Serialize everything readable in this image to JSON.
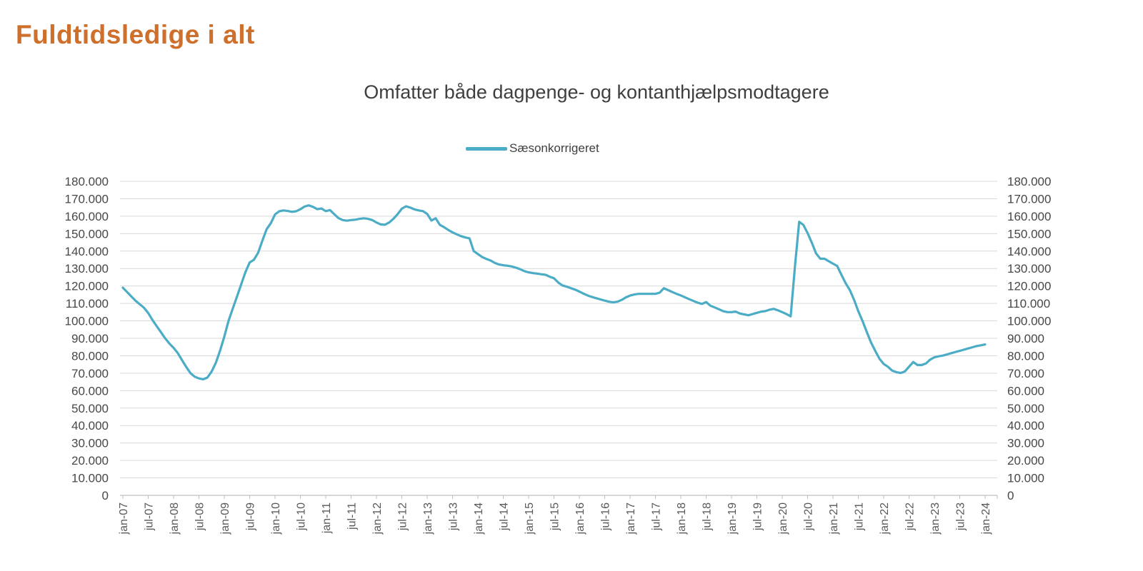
{
  "page": {
    "title": "Fuldtidsledige i alt",
    "title_color": "#CE6F2C"
  },
  "chart": {
    "subtitle": "Omfatter både dagpenge- og kontanthjælpsmodtagere",
    "legend": {
      "label": "Sæsonkorrigeret"
    }
  },
  "chart_data": {
    "type": "line",
    "title": "Omfatter både dagpenge- og kontanthjælpsmodtagere",
    "legend_entries": [
      "Sæsonkorrigeret"
    ],
    "legend_position": "top-center",
    "grid": "horizontal",
    "dual_y_axis": true,
    "line_color": "#4BACC6",
    "gridline_color": "#D9D9D9",
    "axis_color": "#BFBFBF",
    "ylim": [
      0,
      180000
    ],
    "y_tick_step": 10000,
    "y_tick_labels": [
      "0",
      "10.000",
      "20.000",
      "30.000",
      "40.000",
      "50.000",
      "60.000",
      "70.000",
      "80.000",
      "90.000",
      "100.000",
      "110.000",
      "120.000",
      "130.000",
      "140.000",
      "150.000",
      "160.000",
      "170.000",
      "180.000"
    ],
    "x_frequency": "monthly",
    "x_start": "jan-07",
    "x_end": "jan-24",
    "months_per_tick": 6,
    "x_tick_labels": [
      "jan-07",
      "jul-07",
      "jan-08",
      "jul-08",
      "jan-09",
      "jul-09",
      "jan-10",
      "jul-10",
      "jan-11",
      "jul-11",
      "jan-12",
      "jul-12",
      "jan-13",
      "jul-13",
      "jan-14",
      "jul-14",
      "jan-15",
      "jul-15",
      "jan-16",
      "jul-16",
      "jan-17",
      "jul-17",
      "jan-18",
      "jul-18",
      "jan-19",
      "jul-19",
      "jan-20",
      "jul-20",
      "jan-21",
      "jul-21",
      "jan-22",
      "jul-22",
      "jan-23",
      "jul-23",
      "jan-24"
    ],
    "series": [
      {
        "name": "Sæsonkorrigeret",
        "values": [
          119000,
          116500,
          114000,
          111500,
          109500,
          107500,
          104500,
          100500,
          97000,
          93500,
          90000,
          87000,
          84500,
          81500,
          77500,
          73500,
          70000,
          68000,
          67000,
          66500,
          67500,
          71000,
          76000,
          83000,
          91000,
          100000,
          107000,
          114000,
          121000,
          128000,
          133500,
          135000,
          139000,
          146000,
          152500,
          156000,
          161000,
          162800,
          163300,
          163000,
          162500,
          162800,
          164000,
          165500,
          166200,
          165300,
          164000,
          164400,
          162900,
          163500,
          161200,
          158900,
          157800,
          157400,
          157800,
          158000,
          158500,
          158800,
          158500,
          157800,
          156400,
          155300,
          155100,
          156400,
          158500,
          161200,
          164300,
          165700,
          164900,
          163900,
          163300,
          162900,
          161300,
          157500,
          158800,
          155000,
          153700,
          152100,
          150700,
          149600,
          148600,
          147800,
          147300,
          140000,
          138300,
          136600,
          135500,
          134600,
          133200,
          132300,
          131900,
          131600,
          131200,
          130500,
          129600,
          128500,
          127800,
          127400,
          127100,
          126700,
          126400,
          125300,
          124400,
          122000,
          120300,
          119600,
          118700,
          117900,
          116800,
          115600,
          114500,
          113700,
          113000,
          112300,
          111600,
          111000,
          110600,
          111000,
          112000,
          113500,
          114500,
          115100,
          115500,
          115500,
          115500,
          115500,
          115500,
          116200,
          118700,
          117600,
          116500,
          115500,
          114600,
          113500,
          112400,
          111400,
          110400,
          109700,
          110800,
          108700,
          107700,
          106700,
          105600,
          105000,
          105000,
          105300,
          104200,
          103700,
          103200,
          103900,
          104600,
          105300,
          105600,
          106400,
          106900,
          106000,
          105000,
          103900,
          102600,
          131200,
          156800,
          155000,
          150300,
          144800,
          138700,
          135600,
          135600,
          134200,
          132800,
          131500,
          126400,
          121600,
          117600,
          112000,
          105500,
          99900,
          93700,
          87600,
          82800,
          78300,
          75300,
          73700,
          71500,
          70600,
          70100,
          71000,
          73700,
          76400,
          74700,
          74700,
          75600,
          77800,
          79100,
          79700,
          80100,
          80800,
          81500,
          82200,
          82800,
          83500,
          84200,
          84900,
          85600,
          86000,
          86500
        ]
      }
    ]
  }
}
